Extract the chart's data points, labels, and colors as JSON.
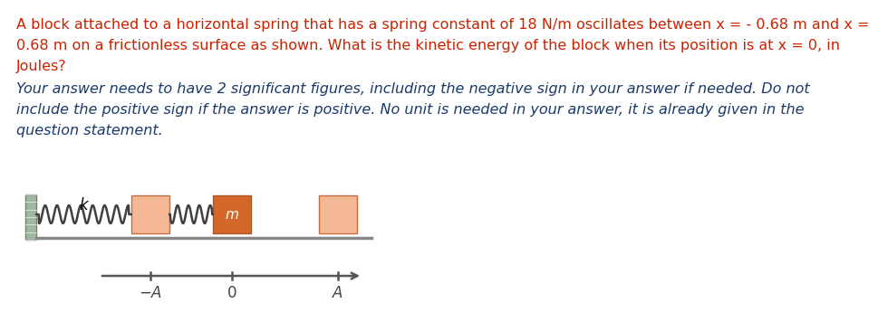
{
  "line1": "A block attached to a horizontal spring that has a spring constant of 18 N/m oscillates between x = - 0.68 m and x =",
  "line2": "0.68 m on a frictionless surface as shown. What is the kinetic energy of the block when its position is at x = 0, in",
  "line3": "Joules?",
  "ans_line1": "Your answer needs to have 2 significant figures, including the negative sign in your answer if needed. Do not",
  "ans_line2": "include the positive sign if the answer is positive. No unit is needed in your answer, it is already given in the",
  "ans_line3": "question statement.",
  "title_color": "#cc2200",
  "answer_color": "#1a3a6a",
  "bg_color": "#ffffff",
  "block_color_light": "#f5b895",
  "block_color_dark": "#d4682a",
  "wall_color": "#a0b8a0",
  "spring_color": "#404040",
  "surface_color": "#888888",
  "axis_color": "#555555",
  "tick_label_color": "#444444",
  "title_fontsize": 11.5,
  "answer_fontsize": 11.5
}
